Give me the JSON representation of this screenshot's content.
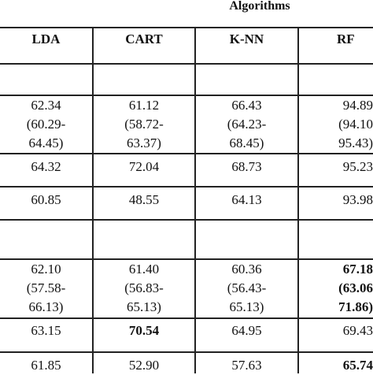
{
  "table": {
    "group_heading": "Algorithms",
    "columns": [
      "LDA",
      "CART",
      "K-NN",
      "RF"
    ],
    "rows": [
      {
        "cells": [
          {
            "lines": [
              "62.34",
              "(60.29-",
              "64.45)"
            ],
            "bold": false
          },
          {
            "lines": [
              "61.12",
              "(58.72-",
              "63.37)"
            ],
            "bold": false
          },
          {
            "lines": [
              "66.43",
              "(64.23-",
              "68.45)"
            ],
            "bold": false
          },
          {
            "lines": [
              "94.89",
              "(94.10",
              "95.43)"
            ],
            "bold": false
          }
        ]
      },
      {
        "cells": [
          {
            "lines": [
              "64.32"
            ],
            "bold": false
          },
          {
            "lines": [
              "72.04"
            ],
            "bold": false
          },
          {
            "lines": [
              "68.73"
            ],
            "bold": false
          },
          {
            "lines": [
              "95.23"
            ],
            "bold": false
          }
        ]
      },
      {
        "cells": [
          {
            "lines": [
              "60.85"
            ],
            "bold": false
          },
          {
            "lines": [
              "48.55"
            ],
            "bold": false
          },
          {
            "lines": [
              "64.13"
            ],
            "bold": false
          },
          {
            "lines": [
              "93.98"
            ],
            "bold": false
          }
        ]
      },
      {
        "cells": [
          {
            "lines": [
              "62.10",
              "(57.58-",
              "66.13)"
            ],
            "bold": false
          },
          {
            "lines": [
              "61.40",
              "(56.83-",
              "65.13)"
            ],
            "bold": false
          },
          {
            "lines": [
              "60.36",
              "(56.43-",
              "65.13)"
            ],
            "bold": false
          },
          {
            "lines": [
              "67.18",
              "(63.06",
              "71.86)"
            ],
            "bold": true
          }
        ]
      },
      {
        "cells": [
          {
            "lines": [
              "63.15"
            ],
            "bold": false
          },
          {
            "lines": [
              "70.54"
            ],
            "bold": true
          },
          {
            "lines": [
              "64.95"
            ],
            "bold": false
          },
          {
            "lines": [
              "69.43"
            ],
            "bold": false
          }
        ]
      },
      {
        "cells": [
          {
            "lines": [
              "61.85"
            ],
            "bold": false
          },
          {
            "lines": [
              "52.90"
            ],
            "bold": false
          },
          {
            "lines": [
              "57.63"
            ],
            "bold": false
          },
          {
            "lines": [
              "65.74"
            ],
            "bold": true
          }
        ]
      }
    ]
  }
}
